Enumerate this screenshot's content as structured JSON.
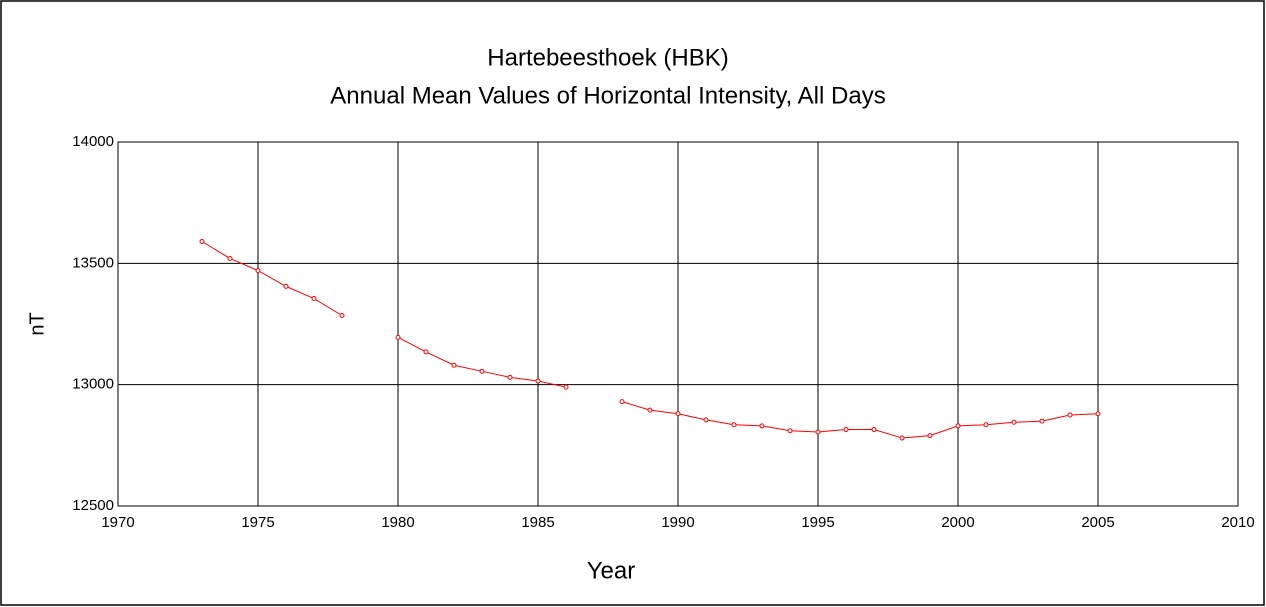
{
  "chart_data": {
    "type": "line",
    "title": "Hartebeesthoek (HBK)",
    "subtitle": "Annual Mean Values of Horizontal Intensity, All Days",
    "x_label": "Year",
    "y_label": "nT",
    "x": [
      1973,
      1974,
      1975,
      1976,
      1977,
      1978,
      1979,
      1980,
      1981,
      1982,
      1983,
      1984,
      1985,
      1986,
      1987,
      1988,
      1989,
      1990,
      1991,
      1992,
      1993,
      1994,
      1995,
      1996,
      1997,
      1998,
      1999,
      2000,
      2001,
      2002,
      2003,
      2004,
      2005
    ],
    "values": [
      13590,
      13520,
      13470,
      13405,
      13355,
      13285,
      null,
      13195,
      13135,
      13080,
      13055,
      13030,
      13015,
      12990,
      null,
      12930,
      12895,
      12880,
      12855,
      12835,
      12830,
      12810,
      12805,
      12815,
      12815,
      12780,
      12790,
      12830,
      12835,
      12845,
      12850,
      12875,
      12880
    ],
    "color": "#ff0000",
    "xlim": [
      1970,
      2010
    ],
    "xticks": [
      1970,
      1975,
      1980,
      1985,
      1990,
      1995,
      2000,
      2005,
      2010
    ],
    "ylim": [
      12500,
      14000
    ],
    "yticks": [
      12500,
      13000,
      13500,
      14000
    ],
    "grid": true
  }
}
